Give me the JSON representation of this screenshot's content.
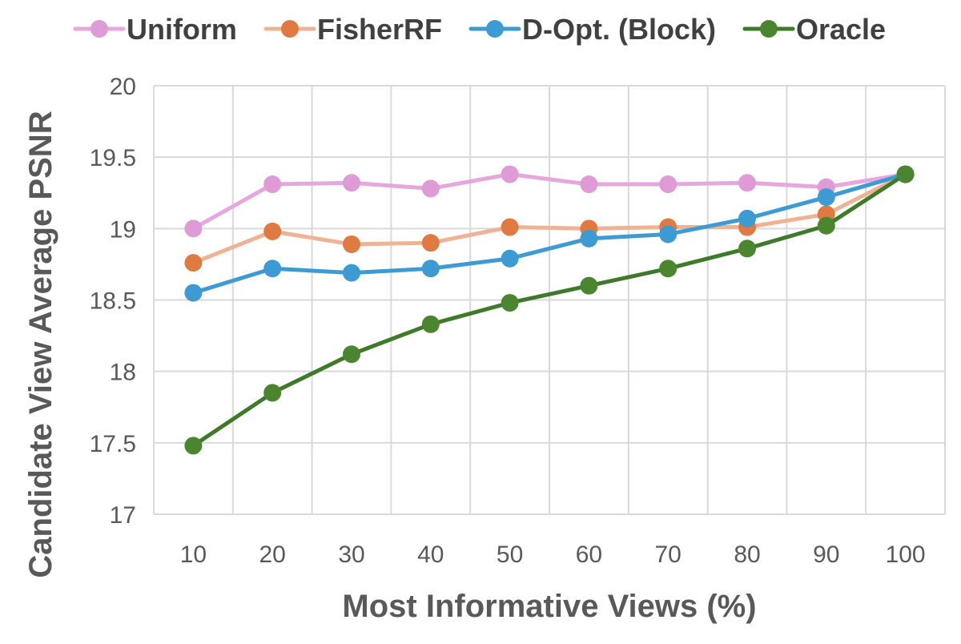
{
  "chart_data": {
    "type": "line",
    "title": "",
    "xlabel": "Most Informative Views (%)",
    "ylabel": "Candidate View Average PSNR",
    "categories": [
      "10",
      "20",
      "30",
      "40",
      "50",
      "60",
      "70",
      "80",
      "90",
      "100"
    ],
    "ylim": [
      17,
      20
    ],
    "yticks": [
      17,
      17.5,
      18,
      18.5,
      19,
      19.5,
      20
    ],
    "ytick_labels": [
      "17",
      "17.5",
      "18",
      "18.5",
      "19",
      "19.5",
      "20"
    ],
    "grid": true,
    "legend_position": "top",
    "series": [
      {
        "name": "Uniform",
        "line_color": "#E6A6DE",
        "marker_color": "#DE9BD6",
        "values": [
          19.0,
          19.31,
          19.32,
          19.28,
          19.38,
          19.31,
          19.31,
          19.32,
          19.29,
          19.38
        ]
      },
      {
        "name": "FisherRF",
        "line_color": "#EDB394",
        "marker_color": "#E07A43",
        "values": [
          18.76,
          18.98,
          18.89,
          18.9,
          19.01,
          19.0,
          19.01,
          19.01,
          19.1,
          19.38
        ]
      },
      {
        "name": "D-Opt. (Block)",
        "line_color": "#3E9AD2",
        "marker_color": "#3E9AD2",
        "values": [
          18.55,
          18.72,
          18.69,
          18.72,
          18.79,
          18.93,
          18.96,
          19.07,
          19.22,
          19.38
        ]
      },
      {
        "name": "Oracle",
        "line_color": "#3F7A2A",
        "marker_color": "#4C8530",
        "values": [
          17.48,
          17.85,
          18.12,
          18.33,
          18.48,
          18.6,
          18.72,
          18.86,
          19.02,
          19.38
        ]
      }
    ]
  }
}
